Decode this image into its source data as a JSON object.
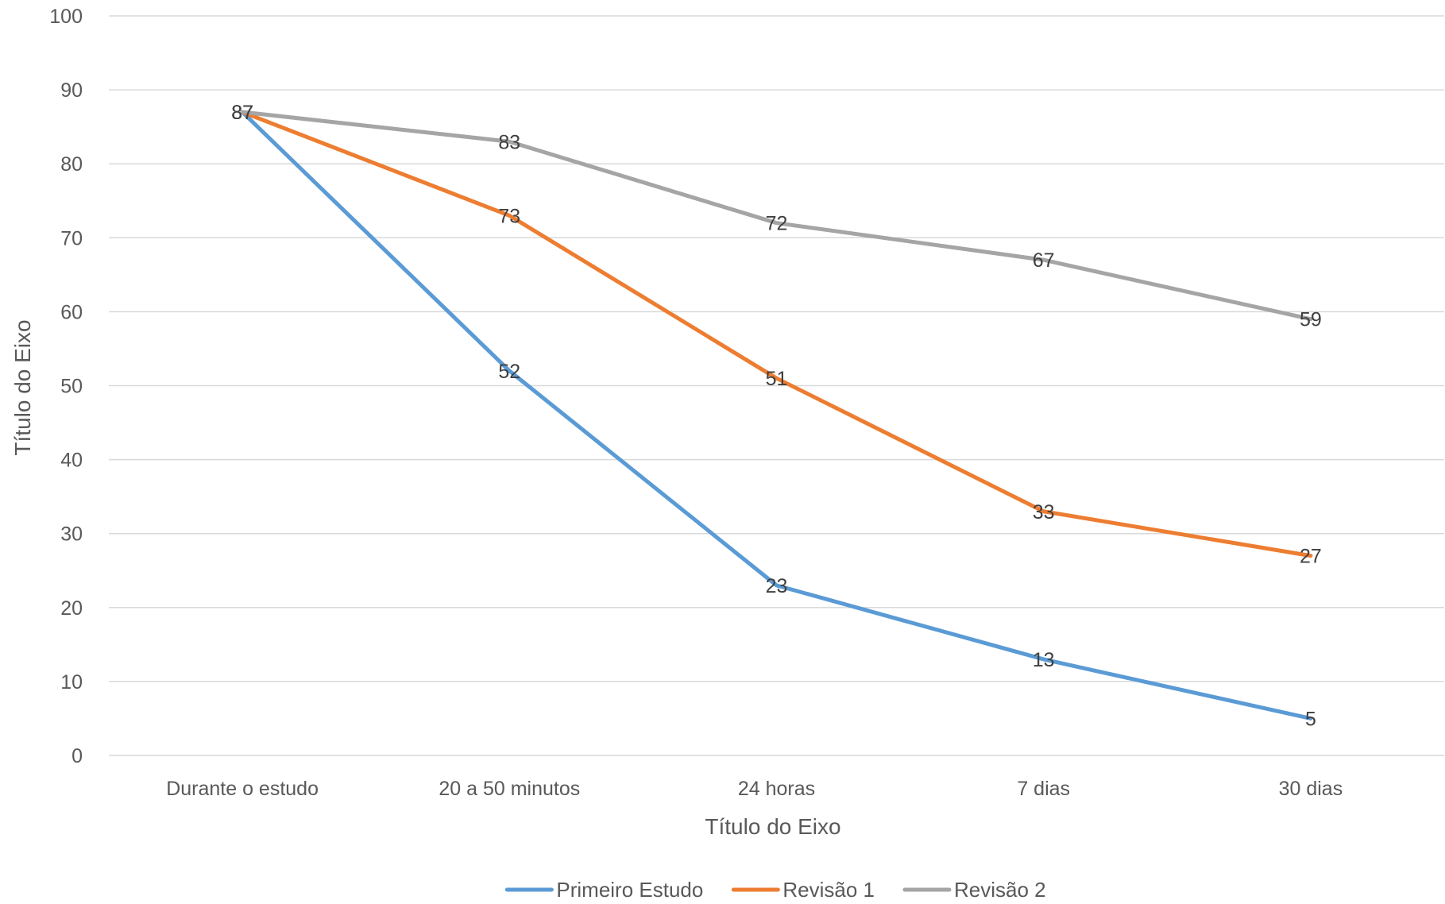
{
  "chart_data": {
    "type": "line",
    "title": "",
    "xlabel": "Título do Eixo",
    "ylabel": "Título do Eixo",
    "categories": [
      "Durante o estudo",
      "20 a 50 minutos",
      "24 horas",
      "7 dias",
      "30 dias"
    ],
    "ylim": [
      0,
      100
    ],
    "yticks": [
      0,
      10,
      20,
      30,
      40,
      50,
      60,
      70,
      80,
      90,
      100
    ],
    "grid": true,
    "legend_position": "bottom",
    "series": [
      {
        "name": "Primeiro Estudo",
        "color": "#5B9BD5",
        "values": [
          87,
          52,
          23,
          13,
          5
        ]
      },
      {
        "name": "Revisão 1",
        "color": "#ED7D31",
        "values": [
          87,
          73,
          51,
          33,
          27
        ]
      },
      {
        "name": "Revisão 2",
        "color": "#A5A5A5",
        "values": [
          87,
          83,
          72,
          67,
          59
        ]
      }
    ]
  }
}
